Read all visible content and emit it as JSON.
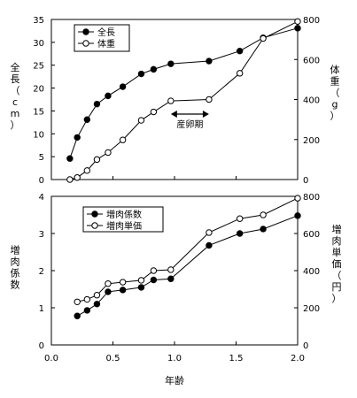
{
  "chart_data": [
    {
      "type": "line",
      "xlim": [
        0,
        2.0
      ],
      "grid": false,
      "legend": "top-left",
      "left_axis": {
        "label": [
          "全",
          "長",
          "（",
          "c",
          "m",
          "）"
        ],
        "lim": [
          0,
          35
        ],
        "ticks": [
          "0",
          "5",
          "10",
          "15",
          "20",
          "25",
          "30",
          "35"
        ]
      },
      "right_axis": {
        "label": [
          "体",
          "重",
          "（",
          "g",
          "）"
        ],
        "lim": [
          0,
          800
        ],
        "ticks": [
          "0",
          "200",
          "400",
          "600",
          "800"
        ]
      },
      "series": [
        {
          "name": "全長",
          "axis": "left",
          "marker": "filled",
          "x": [
            0.15,
            0.21,
            0.29,
            0.37,
            0.46,
            0.58,
            0.73,
            0.83,
            0.97,
            1.28,
            1.53,
            1.72,
            2.0
          ],
          "y": [
            4.6,
            9.2,
            13.1,
            16.5,
            18.3,
            20.3,
            23.1,
            24.1,
            25.3,
            25.9,
            28.1,
            31.0,
            33.1
          ]
        },
        {
          "name": "体重",
          "axis": "right",
          "marker": "open",
          "x": [
            0.15,
            0.21,
            0.29,
            0.37,
            0.46,
            0.58,
            0.73,
            0.83,
            0.97,
            1.28,
            1.53,
            1.72,
            2.0
          ],
          "y": [
            0,
            10,
            45,
            100,
            135,
            198,
            296,
            338,
            393,
            400,
            531,
            705,
            790
          ]
        }
      ],
      "annotation": {
        "text": "産卵期",
        "x_from": 0.97,
        "x_to": 1.28
      }
    },
    {
      "type": "line",
      "xlim": [
        0,
        2.0
      ],
      "grid": false,
      "legend": "top-left",
      "left_axis": {
        "label": [
          "増",
          "肉",
          "係",
          "数"
        ],
        "lim": [
          0,
          4
        ],
        "ticks": [
          "0",
          "1",
          "2",
          "3",
          "4"
        ]
      },
      "right_axis": {
        "label": [
          "増",
          "肉",
          "単",
          "価",
          "（",
          "円",
          "）"
        ],
        "lim": [
          0,
          800
        ],
        "ticks": [
          "0",
          "200",
          "400",
          "600",
          "800"
        ]
      },
      "x_ticks": [
        "0.0",
        "0.5",
        "1.0",
        "1.5",
        "2.0"
      ],
      "x_label": "年齢",
      "series": [
        {
          "name": "増肉係数",
          "axis": "left",
          "marker": "filled",
          "x": [
            0.21,
            0.29,
            0.37,
            0.46,
            0.58,
            0.73,
            0.83,
            0.97,
            1.28,
            1.53,
            1.72,
            2.0
          ],
          "y": [
            0.78,
            0.93,
            1.1,
            1.43,
            1.48,
            1.55,
            1.75,
            1.78,
            2.68,
            3.0,
            3.12,
            3.48
          ]
        },
        {
          "name": "増肉単価",
          "axis": "right",
          "marker": "open",
          "x": [
            0.21,
            0.29,
            0.37,
            0.46,
            0.58,
            0.73,
            0.83,
            0.97,
            1.28,
            1.53,
            1.72,
            2.0
          ],
          "y": [
            232,
            245,
            268,
            330,
            338,
            348,
            400,
            405,
            605,
            680,
            700,
            790
          ]
        }
      ]
    }
  ]
}
